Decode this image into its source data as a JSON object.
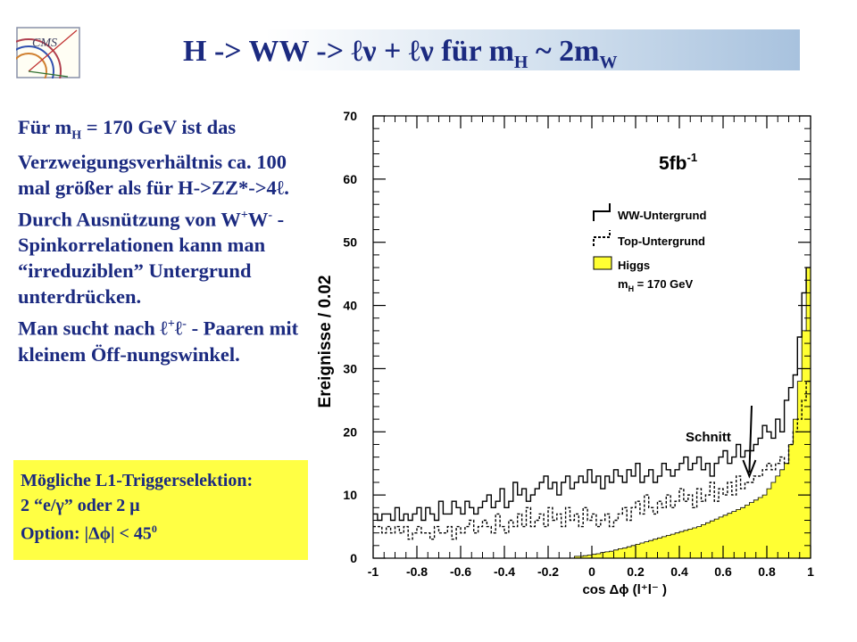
{
  "title": {
    "main": "H -> WW -> ℓν + ℓν für m",
    "sub1": "H",
    "mid": " ~ 2m",
    "sub2": "W"
  },
  "logo": {
    "label": "CMS"
  },
  "left_text": {
    "p1": [
      "Für m",
      "H",
      " = 170 GeV ist das Verzweigungsverhältnis ca. 100 mal größer als für H->ZZ*->4ℓ."
    ],
    "p2": [
      "Durch Ausnützung von W",
      "+",
      "W",
      "-",
      " -Spinkorrelationen kann man “irreduziblen” Untergrund unterdrücken."
    ],
    "p3": [
      "Man sucht nach ℓ",
      "+",
      "ℓ",
      "-",
      " - Paaren mit kleinem Öff-nungswinkel."
    ]
  },
  "trigger_box": {
    "line1": "Mögliche L1-Triggerselektion:",
    "line2": "2 “e/γ” oder 2 μ",
    "line3_a": "Option: |Δϕ| < 45",
    "line3_sup": "0",
    "color": "#ffff44"
  },
  "chart_data": {
    "type": "histogram",
    "xlabel": "cos Δϕ (l⁺l⁻ )",
    "ylabel": "Ereignisse / 0.02",
    "xlim": [
      -1,
      1
    ],
    "ylim": [
      0,
      70
    ],
    "x_ticks": [
      "-1",
      "-0.8",
      "-0.6",
      "-0.4",
      "-0.2",
      "0",
      "0.2",
      "0.4",
      "0.6",
      "0.8",
      "1"
    ],
    "y_ticks": [
      "0",
      "10",
      "20",
      "30",
      "40",
      "50",
      "60",
      "70"
    ],
    "bin_width": 0.02,
    "luminosity_label": "5fb",
    "luminosity_sup": "-1",
    "annotation": {
      "text": "Schnitt",
      "x": 0.72
    },
    "legend": {
      "ww": "WW-Untergrund",
      "top": "Top-Untergrund",
      "higgs": "Higgs",
      "higgs_mass_a": "m",
      "higgs_mass_sub": "H",
      "higgs_mass_b": " = 170 GeV"
    },
    "colors": {
      "higgs_fill": "#ffff33",
      "lines": "#000000"
    },
    "series": [
      {
        "name": "WW-Untergrund",
        "style": "solid",
        "values": [
          7,
          6,
          7,
          7,
          6,
          8,
          6,
          7,
          6,
          7,
          8,
          6,
          8,
          7,
          6,
          9,
          7,
          7,
          9,
          8,
          7,
          9,
          8,
          7,
          8,
          9,
          10,
          8,
          9,
          11,
          8,
          9,
          12,
          10,
          11,
          9,
          10,
          11,
          12,
          13,
          11,
          12,
          10,
          12,
          13,
          11,
          12,
          13,
          12,
          14,
          12,
          13,
          11,
          13,
          12,
          14,
          13,
          12,
          14,
          13,
          15,
          12,
          13,
          14,
          12,
          13,
          15,
          14,
          13,
          14,
          15,
          16,
          14,
          15,
          16,
          14,
          15,
          13,
          15,
          16,
          17,
          15,
          16,
          18,
          16,
          17,
          17,
          18,
          19,
          21,
          20,
          19,
          22,
          20,
          25,
          27,
          29,
          35,
          42,
          46
        ]
      },
      {
        "name": "Top-Untergrund",
        "style": "dashed",
        "values": [
          5,
          5,
          4,
          5,
          4,
          5,
          4,
          5,
          3,
          4,
          5,
          4,
          4,
          3,
          5,
          4,
          4,
          5,
          3,
          5,
          4,
          5,
          6,
          4,
          5,
          6,
          5,
          4,
          7,
          5,
          4,
          6,
          5,
          7,
          5,
          8,
          5,
          6,
          7,
          5,
          8,
          6,
          7,
          5,
          8,
          6,
          7,
          5,
          8,
          6,
          7,
          5,
          6,
          7,
          5,
          6,
          7,
          8,
          6,
          8,
          9,
          7,
          10,
          8,
          7,
          9,
          8,
          10,
          8,
          9,
          11,
          9,
          10,
          8,
          11,
          9,
          10,
          12,
          9,
          11,
          10,
          12,
          10,
          13,
          11,
          12,
          12,
          13,
          13,
          14,
          15,
          14,
          15,
          16,
          15,
          18,
          20,
          22,
          25,
          28
        ]
      },
      {
        "name": "Higgs",
        "style": "filled",
        "values": [
          0,
          0,
          0,
          0,
          0,
          0,
          0,
          0,
          0,
          0,
          0,
          0,
          0,
          0,
          0,
          0,
          0,
          0,
          0,
          0,
          0,
          0,
          0,
          0,
          0,
          0,
          0,
          0,
          0,
          0,
          0,
          0,
          0,
          0,
          0,
          0,
          0,
          0,
          0,
          0,
          0,
          0,
          0,
          0,
          0,
          0,
          0.3,
          0.3,
          0.4,
          0.5,
          0.6,
          0.7,
          0.9,
          1.0,
          1.1,
          1.3,
          1.5,
          1.6,
          1.8,
          2.0,
          2.2,
          2.4,
          2.6,
          2.8,
          3.0,
          3.2,
          3.4,
          3.6,
          3.8,
          4.0,
          4.2,
          4.4,
          4.6,
          4.8,
          5.0,
          5.3,
          5.6,
          5.9,
          6.2,
          6.5,
          6.8,
          7.1,
          7.4,
          7.7,
          8.0,
          8.4,
          8.8,
          9.2,
          9.6,
          10.0,
          11,
          12,
          13,
          14,
          15,
          18,
          22,
          28,
          36,
          46
        ]
      }
    ]
  }
}
